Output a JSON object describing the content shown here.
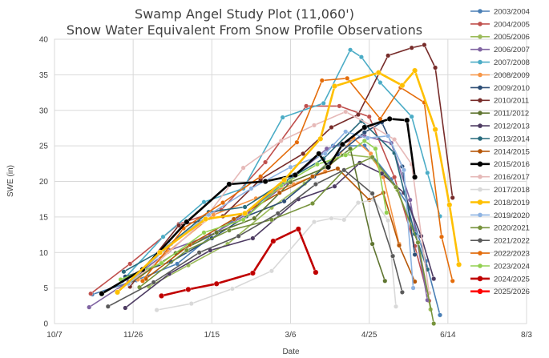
{
  "chart_data": {
    "type": "line",
    "title": "Swamp Angel Study Plot (11,060')",
    "subtitle": "Snow Water Equivalent From Snow Profile Observations",
    "xlabel": "Date",
    "ylabel": "SWE (in)",
    "ylim": [
      0,
      40
    ],
    "yticks": [
      0,
      5,
      10,
      15,
      20,
      25,
      30,
      35,
      40
    ],
    "xlim": [
      0,
      300
    ],
    "x_unit": "days since Oct 7",
    "xticks": [
      {
        "value": 0,
        "label": "10/7"
      },
      {
        "value": 50,
        "label": "11/26"
      },
      {
        "value": 100,
        "label": "1/15"
      },
      {
        "value": 150,
        "label": "3/6"
      },
      {
        "value": 200,
        "label": "4/25"
      },
      {
        "value": 250,
        "label": "6/14"
      },
      {
        "value": 300,
        "label": "8/3"
      }
    ],
    "grid": true,
    "legend_position": "right",
    "series": [
      {
        "name": "2003/2004",
        "color": "#4a7fb5",
        "x": [
          24,
          52,
          78,
          103,
          128,
          152,
          177,
          197,
          214,
          226,
          236,
          245
        ],
        "y": [
          4.1,
          6.1,
          8.4,
          12.9,
          16.6,
          20.9,
          25.0,
          25.0,
          20.3,
          16.2,
          8.8,
          1.2
        ]
      },
      {
        "name": "2004/2005",
        "color": "#c0504d",
        "x": [
          23,
          48,
          79,
          106,
          134,
          160,
          181,
          200,
          216,
          229,
          238
        ],
        "y": [
          4.2,
          8.4,
          14.0,
          16.0,
          22.7,
          30.6,
          30.6,
          29.1,
          20.6,
          10.9,
          3.2
        ]
      },
      {
        "name": "2005/2006",
        "color": "#9bbb59",
        "x": [
          60,
          85,
          110,
          138,
          159,
          180,
          201,
          218,
          231,
          239
        ],
        "y": [
          5.2,
          8.2,
          11.2,
          16.3,
          19.7,
          23.9,
          23.4,
          18.8,
          11.4,
          2.0
        ]
      },
      {
        "name": "2006/2007",
        "color": "#8064a2",
        "x": [
          22,
          47,
          73,
          99,
          124,
          148,
          173,
          197,
          214,
          226,
          237
        ],
        "y": [
          2.3,
          5.9,
          10.3,
          12.4,
          15.6,
          19.8,
          24.6,
          26.4,
          25.4,
          17.4,
          3.3
        ]
      },
      {
        "name": "2007/2008",
        "color": "#4bacc6",
        "x": [
          43,
          69,
          95,
          120,
          145,
          171,
          188,
          195,
          207,
          227,
          237,
          245
        ],
        "y": [
          6.0,
          12.2,
          17.1,
          19.0,
          29.0,
          31.0,
          38.5,
          37.5,
          33.9,
          29.1,
          21.2,
          15.1
        ]
      },
      {
        "name": "2008/2009",
        "color": "#f79646",
        "x": [
          53,
          72,
          101,
          128,
          152,
          172,
          190,
          201,
          209,
          219
        ],
        "y": [
          6.2,
          10.1,
          15.3,
          17.6,
          19.6,
          21.4,
          26.1,
          23.9,
          20.6,
          11.2
        ]
      },
      {
        "name": "2009/2010",
        "color": "#2c4d75",
        "x": [
          45,
          74,
          100,
          122,
          146,
          165,
          180,
          197,
          208,
          221,
          229
        ],
        "y": [
          6.6,
          8.7,
          12.0,
          15.1,
          17.2,
          20.7,
          23.8,
          26.9,
          28.3,
          22.1,
          9.7
        ]
      },
      {
        "name": "2010/2011",
        "color": "#772c2a",
        "x": [
          48,
          79,
          107,
          131,
          158,
          176,
          193,
          212,
          227,
          235,
          242,
          253
        ],
        "y": [
          5.2,
          13.8,
          15.1,
          20.3,
          23.9,
          27.6,
          29.4,
          37.7,
          38.8,
          39.2,
          36.0,
          17.7
        ]
      },
      {
        "name": "2011/2012",
        "color": "#5f7530",
        "x": [
          47,
          77,
          103,
          127,
          150,
          173,
          188,
          202,
          210
        ],
        "y": [
          5.6,
          9.9,
          12.8,
          14.8,
          19.9,
          22.0,
          24.6,
          11.2,
          6.0
        ]
      },
      {
        "name": "2012/2013",
        "color": "#4d3b62",
        "x": [
          45,
          73,
          99,
          126,
          155,
          178,
          194,
          208,
          222,
          233,
          241
        ],
        "y": [
          2.2,
          7.0,
          10.3,
          12.0,
          17.5,
          19.3,
          22.6,
          21.1,
          18.4,
          12.3,
          6.3
        ]
      },
      {
        "name": "2013/2014",
        "color": "#276a7c",
        "x": [
          44,
          69,
          98,
          121,
          147,
          171,
          195,
          216,
          229,
          237
        ],
        "y": [
          7.3,
          10.4,
          15.7,
          16.4,
          20.1,
          23.2,
          28.5,
          24.0,
          12.6,
          7.6
        ]
      },
      {
        "name": "2014/2015",
        "color": "#b65708",
        "x": [
          58,
          86,
          114,
          143,
          164,
          180,
          200,
          209,
          219,
          229
        ],
        "y": [
          6.3,
          11.1,
          14.7,
          18.4,
          20.7,
          21.8,
          17.4,
          18.4,
          11.0,
          5.9
        ]
      },
      {
        "name": "2015/2016",
        "color": "#000000",
        "x": [
          30,
          56,
          84,
          111,
          134,
          153,
          168,
          174,
          183,
          197,
          213,
          224,
          229
        ],
        "y": [
          4.2,
          7.6,
          14.3,
          19.6,
          20.0,
          20.9,
          23.9,
          22.0,
          25.2,
          27.6,
          28.8,
          28.6,
          20.6
        ]
      },
      {
        "name": "2016/2017",
        "color": "#e6b9b8",
        "x": [
          40,
          67,
          94,
          120,
          144,
          165,
          185,
          201,
          216,
          227,
          238
        ],
        "y": [
          4.5,
          8.9,
          14.3,
          21.9,
          25.7,
          27.9,
          29.8,
          27.9,
          25.9,
          22.4,
          4.3
        ]
      },
      {
        "name": "2017/2018",
        "color": "#d9d9d9",
        "x": [
          65,
          87,
          113,
          138,
          165,
          176,
          184,
          193,
          203,
          212,
          217
        ],
        "y": [
          1.9,
          2.8,
          4.9,
          7.4,
          14.3,
          14.8,
          14.6,
          17.0,
          17.4,
          14.5,
          2.4
        ]
      },
      {
        "name": "2018/2019",
        "color": "#ffc000",
        "x": [
          40,
          67,
          96,
          121,
          146,
          169,
          178,
          206,
          221,
          229,
          242,
          251,
          257
        ],
        "y": [
          4.4,
          10.0,
          14.7,
          15.5,
          20.2,
          26.0,
          33.4,
          35.3,
          33.5,
          35.6,
          27.3,
          16.7,
          8.3
        ]
      },
      {
        "name": "2019/2020",
        "color": "#8db3e2",
        "x": [
          47,
          74,
          98,
          125,
          150,
          172,
          185,
          199,
          212,
          222,
          228
        ],
        "y": [
          5.6,
          11.2,
          15.3,
          19.0,
          22.0,
          23.9,
          27.0,
          26.1,
          26.4,
          21.6,
          5.0
        ]
      },
      {
        "name": "2020/2021",
        "color": "#77933c",
        "x": [
          54,
          84,
          111,
          138,
          164,
          184,
          202,
          217,
          231,
          241
        ],
        "y": [
          5.1,
          10.3,
          13.1,
          14.6,
          16.9,
          21.6,
          23.4,
          19.2,
          11.4,
          0.0
        ]
      },
      {
        "name": "2021/2022",
        "color": "#5a5a5a",
        "x": [
          34,
          63,
          92,
          117,
          142,
          166,
          184,
          202,
          215,
          221
        ],
        "y": [
          2.4,
          5.8,
          10.0,
          12.3,
          15.5,
          19.6,
          21.6,
          18.3,
          9.5,
          4.4
        ]
      },
      {
        "name": "2022/2023",
        "color": "#e46c0a",
        "x": [
          56,
          82,
          107,
          131,
          154,
          170,
          186,
          207,
          220,
          235,
          246,
          253
        ],
        "y": [
          6.0,
          13.4,
          17.0,
          20.7,
          25.5,
          34.2,
          34.5,
          28.8,
          33.2,
          31.1,
          12.2,
          6.0
        ]
      },
      {
        "name": "2023/2024",
        "color": "#92d050",
        "x": [
          42,
          68,
          95,
          120,
          144,
          167,
          185,
          197,
          204,
          211
        ],
        "y": [
          6.2,
          8.5,
          12.8,
          14.6,
          19.4,
          22.4,
          23.7,
          25.7,
          24.6,
          15.6
        ]
      },
      {
        "name": "2024/2025",
        "color": "#c00000",
        "x": [
          68,
          85,
          103,
          126,
          139,
          155,
          166
        ],
        "y": [
          3.9,
          4.8,
          5.6,
          7.1,
          11.6,
          13.3,
          7.2
        ]
      },
      {
        "name": "2025/2026",
        "color": "#ff0000",
        "x": [],
        "y": []
      }
    ]
  }
}
